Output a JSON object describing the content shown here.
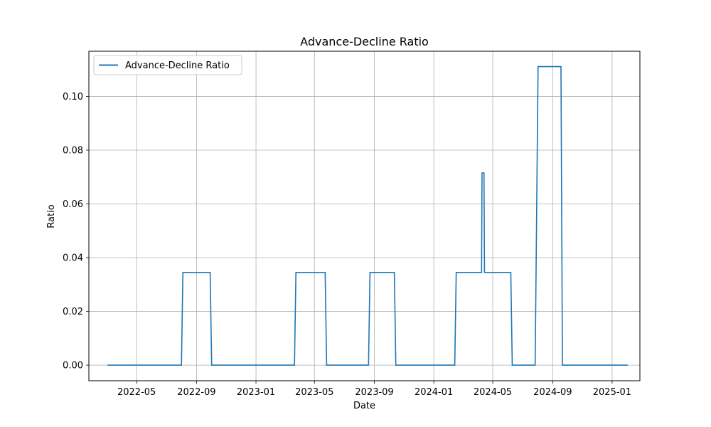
{
  "chart_data": {
    "type": "line",
    "title": "Advance-Decline Ratio",
    "xlabel": "Date",
    "ylabel": "Ratio",
    "xlim": [
      "2022-01-23",
      "2025-02-27"
    ],
    "ylim": [
      -0.0058,
      0.1168
    ],
    "grid": true,
    "legend_position": "top-left",
    "x_ticks": [
      "2022-05",
      "2022-09",
      "2023-01",
      "2023-05",
      "2023-09",
      "2024-01",
      "2024-05",
      "2024-09",
      "2025-01"
    ],
    "y_ticks": [
      "0.00",
      "0.02",
      "0.04",
      "0.06",
      "0.08",
      "0.10"
    ],
    "series": [
      {
        "name": "Advance-Decline Ratio",
        "color": "#1f77b4",
        "points": [
          [
            "2022-03-02",
            0.0
          ],
          [
            "2022-08-01",
            0.0
          ],
          [
            "2022-08-04",
            0.0345
          ],
          [
            "2022-09-29",
            0.0345
          ],
          [
            "2022-10-02",
            0.0
          ],
          [
            "2023-03-21",
            0.0
          ],
          [
            "2023-03-24",
            0.0345
          ],
          [
            "2023-05-23",
            0.0345
          ],
          [
            "2023-05-26",
            0.0
          ],
          [
            "2023-08-20",
            0.0
          ],
          [
            "2023-08-23",
            0.0345
          ],
          [
            "2023-10-12",
            0.0345
          ],
          [
            "2023-10-15",
            0.0
          ],
          [
            "2024-02-13",
            0.0
          ],
          [
            "2024-02-16",
            0.0345
          ],
          [
            "2024-04-08",
            0.0345
          ],
          [
            "2024-04-09",
            0.0715
          ],
          [
            "2024-04-13",
            0.0715
          ],
          [
            "2024-04-14",
            0.0345
          ],
          [
            "2024-06-07",
            0.0345
          ],
          [
            "2024-06-10",
            0.0
          ],
          [
            "2024-07-27",
            0.0
          ],
          [
            "2024-08-02",
            0.1111
          ],
          [
            "2024-09-18",
            0.1111
          ],
          [
            "2024-09-21",
            0.0
          ],
          [
            "2025-02-02",
            0.0
          ]
        ]
      }
    ]
  }
}
